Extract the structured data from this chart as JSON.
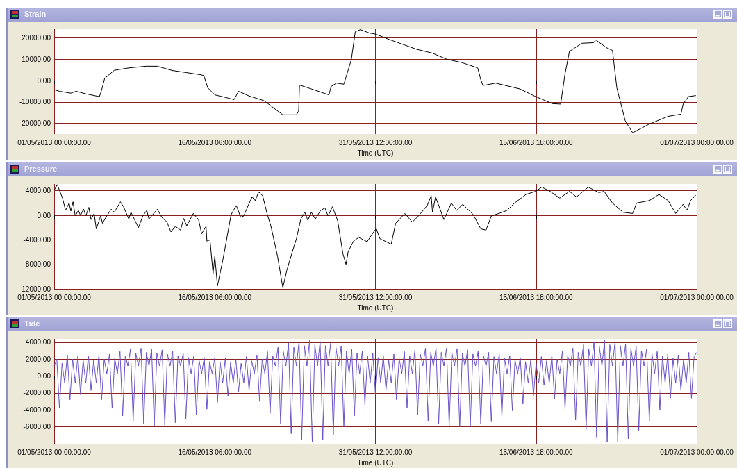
{
  "chart_data": [
    {
      "type": "line",
      "title": "Strain",
      "xlabel": "Time (UTC)",
      "grid": true,
      "xlim": [
        "2013-05-01T00:00",
        "2013-07-01T00:00"
      ],
      "xticks": [
        {
          "value": "2013-05-01T00:00",
          "label": "01/05/2013 00:00:00.00"
        },
        {
          "value": "2013-05-16T06:00",
          "label": "16/05/2013 06:00:00.00"
        },
        {
          "value": "2013-05-31T12:00",
          "label": "31/05/2013 12:00:00.00"
        },
        {
          "value": "2013-06-15T18:00",
          "label": "15/06/2013 18:00:00.00"
        },
        {
          "value": "2013-07-01T00:00",
          "label": "01/07/2013 00:00:00.00"
        }
      ],
      "ylim": [
        -25000,
        24000
      ],
      "yticks": [
        {
          "value": -20000,
          "label": "-20000.00"
        },
        {
          "value": -10000,
          "label": "-10000.00"
        },
        {
          "value": 0,
          "label": "0.00"
        },
        {
          "value": 10000,
          "label": "10000.00"
        },
        {
          "value": 20000,
          "label": "20000.00"
        }
      ],
      "x": [
        "2013-05-01T00:00",
        "2013-05-01T12:00",
        "2013-05-02T14:00",
        "2013-05-03T02:00",
        "2013-05-04T00:00",
        "2013-05-05T07:00",
        "2013-05-05T12:00",
        "2013-05-05T19:00",
        "2013-05-06T17:00",
        "2013-05-08T02:00",
        "2013-05-09T17:00",
        "2013-05-10T19:00",
        "2013-05-12T05:00",
        "2013-05-13T14:00",
        "2013-05-14T22:00",
        "2013-05-15T05:00",
        "2013-05-15T14:00",
        "2013-05-16T06:00",
        "2013-05-17T05:00",
        "2013-05-18T02:00",
        "2013-05-18T12:00",
        "2013-05-19T12:00",
        "2013-05-20T22:00",
        "2013-05-22T17:00",
        "2013-05-24T00:00",
        "2013-05-24T05:00",
        "2013-05-24T07:00",
        "2013-05-25T10:00",
        "2013-05-27T02:00",
        "2013-05-27T07:00",
        "2013-05-27T19:00",
        "2013-05-28T12:00",
        "2013-05-29T05:00",
        "2013-05-29T14:00",
        "2013-05-30T02:00",
        "2013-05-30T22:00",
        "2013-05-31T12:00",
        "2013-06-01T19:00",
        "2013-06-04T10:00",
        "2013-06-05T22:00",
        "2013-06-07T07:00",
        "2013-06-08T17:00",
        "2013-06-10T05:00",
        "2013-06-10T12:00",
        "2013-06-10T17:00",
        "2013-06-11T22:00",
        "2013-06-14T05:00",
        "2013-06-15T14:00",
        "2013-06-17T07:00",
        "2013-06-18T02:00",
        "2013-06-18T12:00",
        "2013-06-18T22:00",
        "2013-06-20T02:00",
        "2013-06-21T05:00",
        "2013-06-21T10:00",
        "2013-06-22T10:00",
        "2013-06-23T00:00",
        "2013-06-23T10:00",
        "2013-06-24T05:00",
        "2013-06-24T22:00",
        "2013-06-26T12:00",
        "2013-06-28T07:00",
        "2013-06-29T12:00",
        "2013-06-29T17:00",
        "2013-06-30T05:00",
        "2013-06-30T22:00"
      ],
      "series": [
        {
          "color": "#000000",
          "values": [
            -4300,
            -5000,
            -5900,
            -5000,
            -6200,
            -7500,
            -4500,
            1000,
            4800,
            5900,
            6700,
            6700,
            4700,
            3700,
            2700,
            2300,
            -3400,
            -6700,
            -7800,
            -8900,
            -5000,
            -7200,
            -9400,
            -16000,
            -16000,
            -14300,
            -2100,
            -3900,
            -6700,
            -2800,
            -1200,
            -1700,
            9700,
            22800,
            23800,
            22200,
            21700,
            19200,
            14600,
            12800,
            9900,
            8400,
            5900,
            400,
            -2300,
            -1200,
            -3900,
            -7200,
            -10800,
            -11000,
            3200,
            13600,
            17400,
            17700,
            19000,
            15400,
            14100,
            -3400,
            -18700,
            -24400,
            -20300,
            -16700,
            -15700,
            -11000,
            -7500,
            -7000
          ]
        }
      ]
    },
    {
      "type": "line",
      "title": "Pressure",
      "xlabel": "Time (UTC)",
      "grid": true,
      "xlim": [
        "2013-05-01T00:00",
        "2013-07-01T00:00"
      ],
      "xticks": [
        {
          "value": "2013-05-01T00:00",
          "label": "01/05/2013 00:00:00.00"
        },
        {
          "value": "2013-05-16T06:00",
          "label": "16/05/2013 06:00:00.00"
        },
        {
          "value": "2013-05-31T12:00",
          "label": "31/05/2013 12:00:00.00"
        },
        {
          "value": "2013-06-15T18:00",
          "label": "15/06/2013 18:00:00.00"
        },
        {
          "value": "2013-07-01T00:00",
          "label": "01/07/2013 00:00:00.00"
        }
      ],
      "ylim": [
        -12000,
        5100
      ],
      "yticks": [
        {
          "value": -12000,
          "label": "-12000.00"
        },
        {
          "value": -8000,
          "label": "-8000.00"
        },
        {
          "value": -4000,
          "label": "-4000.00"
        },
        {
          "value": 0,
          "label": "0.00"
        },
        {
          "value": 4000,
          "label": "4000.00"
        }
      ],
      "x": [
        "2013-05-01T00:00",
        "2013-05-01T07:00",
        "2013-05-01T19:00",
        "2013-05-02T02:00",
        "2013-05-02T10:00",
        "2013-05-02T14:00",
        "2013-05-02T19:00",
        "2013-05-03T00:00",
        "2013-05-03T07:00",
        "2013-05-03T12:00",
        "2013-05-03T19:00",
        "2013-05-04T00:00",
        "2013-05-04T07:00",
        "2013-05-04T12:00",
        "2013-05-04T19:00",
        "2013-05-05T00:00",
        "2013-05-05T10:00",
        "2013-05-05T14:00",
        "2013-05-05T22:00",
        "2013-05-06T10:00",
        "2013-05-06T17:00",
        "2013-05-07T07:00",
        "2013-05-07T14:00",
        "2013-05-08T02:00",
        "2013-05-08T07:00",
        "2013-05-09T00:00",
        "2013-05-09T10:00",
        "2013-05-09T19:00",
        "2013-05-10T00:00",
        "2013-05-10T19:00",
        "2013-05-11T05:00",
        "2013-05-11T17:00",
        "2013-05-12T02:00",
        "2013-05-12T12:00",
        "2013-05-13T00:00",
        "2013-05-13T07:00",
        "2013-05-13T14:00",
        "2013-05-14T05:00",
        "2013-05-14T17:00",
        "2013-05-15T00:00",
        "2013-05-15T10:00",
        "2013-05-15T12:00",
        "2013-05-15T19:00",
        "2013-05-16T02:00",
        "2013-05-16T06:00",
        "2013-05-16T12:00",
        "2013-05-17T00:00",
        "2013-05-17T07:00",
        "2013-05-17T19:00",
        "2013-05-18T07:00",
        "2013-05-18T17:00",
        "2013-05-19T00:00",
        "2013-05-19T10:00",
        "2013-05-19T19:00",
        "2013-05-20T02:00",
        "2013-05-20T10:00",
        "2013-05-20T19:00",
        "2013-05-21T05:00",
        "2013-05-21T14:00",
        "2013-05-22T05:00",
        "2013-05-22T17:00",
        "2013-05-23T02:00",
        "2013-05-23T14:00",
        "2013-05-24T00:00",
        "2013-05-24T10:00",
        "2013-05-24T19:00",
        "2013-05-25T02:00",
        "2013-05-25T10:00",
        "2013-05-25T19:00",
        "2013-05-26T07:00",
        "2013-05-26T17:00",
        "2013-05-27T00:00",
        "2013-05-27T10:00",
        "2013-05-27T22:00",
        "2013-05-28T10:00",
        "2013-05-28T17:00",
        "2013-05-28T22:00",
        "2013-05-29T10:00",
        "2013-05-29T22:00",
        "2013-05-30T17:00",
        "2013-05-31T10:00",
        "2013-05-31T14:00",
        "2013-05-31T22:00",
        "2013-06-02T00:00",
        "2013-06-02T10:00",
        "2013-06-03T07:00",
        "2013-06-04T00:00",
        "2013-06-04T14:00",
        "2013-06-05T10:00",
        "2013-06-05T19:00",
        "2013-06-05T22:00",
        "2013-06-06T05:00",
        "2013-06-07T00:00",
        "2013-06-07T17:00",
        "2013-06-08T05:00",
        "2013-06-08T19:00",
        "2013-06-09T19:00",
        "2013-06-10T12:00",
        "2013-06-11T00:00",
        "2013-06-11T12:00",
        "2013-06-12T05:00",
        "2013-06-13T00:00",
        "2013-06-13T17:00",
        "2013-06-14T19:00",
        "2013-06-15T17:00",
        "2013-06-16T07:00",
        "2013-06-17T02:00",
        "2013-06-18T00:00",
        "2013-06-18T22:00",
        "2013-06-19T14:00",
        "2013-06-20T17:00",
        "2013-06-21T17:00",
        "2013-06-22T05:00",
        "2013-06-23T00:00",
        "2013-06-24T00:00",
        "2013-06-24T22:00",
        "2013-06-25T07:00",
        "2013-06-26T12:00",
        "2013-06-27T10:00",
        "2013-06-28T07:00",
        "2013-06-29T00:00",
        "2013-06-29T17:00",
        "2013-06-30T02:00",
        "2013-06-30T10:00",
        "2013-06-30T22:00"
      ],
      "series": [
        {
          "color": "#000000",
          "values": [
            4100,
            5000,
            2800,
            800,
            2000,
            700,
            2200,
            -100,
            800,
            0,
            1000,
            -100,
            1300,
            -700,
            300,
            -2200,
            -100,
            -1300,
            -300,
            1000,
            500,
            2200,
            1400,
            -600,
            500,
            -2000,
            -100,
            800,
            -600,
            1000,
            -300,
            -1100,
            -2700,
            -1800,
            -2400,
            -500,
            -1700,
            300,
            -700,
            -3000,
            -1800,
            -4200,
            -4000,
            -9500,
            -6700,
            -11500,
            -7400,
            -4700,
            100,
            1600,
            -300,
            -100,
            1600,
            3000,
            2400,
            3800,
            3200,
            300,
            -1800,
            -6700,
            -11800,
            -9000,
            -6100,
            -3800,
            -600,
            500,
            -800,
            500,
            -600,
            800,
            1200,
            -100,
            1400,
            -900,
            -6300,
            -8000,
            -5900,
            -4200,
            -3600,
            -4300,
            -2500,
            -2200,
            -3800,
            -4700,
            -1300,
            300,
            -1100,
            -100,
            1600,
            3200,
            500,
            3000,
            -700,
            2000,
            800,
            1800,
            100,
            -2200,
            -2400,
            -100,
            300,
            800,
            2000,
            3400,
            3900,
            4600,
            3900,
            2800,
            3900,
            3000,
            4600,
            3700,
            3900,
            2000,
            500,
            300,
            2000,
            2400,
            3400,
            2400,
            300,
            1800,
            800,
            2400,
            3300
          ]
        }
      ]
    },
    {
      "type": "line",
      "title": "Tide",
      "xlabel": "Time (UTC)",
      "grid": true,
      "xlim": [
        "2013-05-01T00:00",
        "2013-07-01T00:00"
      ],
      "xticks": [
        {
          "value": "2013-05-01T00:00",
          "label": "01/05/2013 00:00:00.00"
        },
        {
          "value": "2013-05-16T06:00",
          "label": "16/05/2013 06:00:00.00"
        },
        {
          "value": "2013-05-31T12:00",
          "label": "31/05/2013 12:00:00.00"
        },
        {
          "value": "2013-06-15T18:00",
          "label": "15/06/2013 18:00:00.00"
        },
        {
          "value": "2013-07-01T00:00",
          "label": "01/07/2013 00:00:00.00"
        }
      ],
      "ylim": [
        -8000,
        4400
      ],
      "yticks": [
        {
          "value": -6000,
          "label": "-6000.00"
        },
        {
          "value": -4000,
          "label": "-4000.00"
        },
        {
          "value": -2000,
          "label": "-2000.00"
        },
        {
          "value": 0,
          "label": "0.00"
        },
        {
          "value": 2000,
          "label": "2000.00"
        },
        {
          "value": 4000,
          "label": "4000.00"
        }
      ],
      "x": [
        "2013-05-01T00:00",
        "2013-05-01T06:00",
        "2013-05-01T12:00",
        "2013-05-01T18:00",
        "2013-05-02T00:00",
        "2013-05-02T06:00",
        "2013-05-02T12:00",
        "2013-05-02T18:00",
        "2013-05-03T00:00",
        "2013-05-03T06:00",
        "2013-05-03T12:00",
        "2013-05-03T18:00",
        "2013-05-04T00:00",
        "2013-05-04T06:00",
        "2013-05-04T12:00",
        "2013-05-04T18:00",
        "2013-05-05T00:00",
        "2013-05-05T06:00",
        "2013-05-05T12:00",
        "2013-05-05T18:00",
        "2013-05-06T00:00",
        "2013-05-06T06:00",
        "2013-05-06T12:00",
        "2013-05-06T18:00",
        "2013-05-07T00:00",
        "2013-05-07T06:00",
        "2013-05-07T12:00",
        "2013-05-07T18:00",
        "2013-05-08T00:00",
        "2013-05-08T06:00",
        "2013-05-08T12:00",
        "2013-05-08T18:00",
        "2013-05-09T00:00",
        "2013-05-09T06:00",
        "2013-05-09T12:00",
        "2013-05-09T18:00",
        "2013-05-10T00:00",
        "2013-05-10T06:00",
        "2013-05-10T12:00",
        "2013-05-10T18:00",
        "2013-05-11T00:00",
        "2013-05-11T06:00",
        "2013-05-11T12:00",
        "2013-05-11T18:00",
        "2013-05-12T00:00",
        "2013-05-12T06:00",
        "2013-05-12T12:00",
        "2013-05-12T18:00",
        "2013-05-13T00:00",
        "2013-05-13T06:00",
        "2013-05-13T12:00",
        "2013-05-13T18:00",
        "2013-05-14T00:00",
        "2013-05-14T06:00",
        "2013-05-14T12:00",
        "2013-05-14T18:00",
        "2013-05-15T00:00",
        "2013-05-15T06:00",
        "2013-05-15T12:00",
        "2013-05-15T18:00",
        "2013-05-16T00:00",
        "2013-05-16T06:00",
        "2013-05-16T12:00",
        "2013-05-16T18:00",
        "2013-05-17T00:00",
        "2013-05-17T06:00",
        "2013-05-17T12:00",
        "2013-05-17T18:00",
        "2013-05-18T00:00",
        "2013-05-18T06:00",
        "2013-05-18T12:00",
        "2013-05-18T18:00",
        "2013-05-19T00:00",
        "2013-05-19T06:00",
        "2013-05-19T12:00",
        "2013-05-19T18:00",
        "2013-05-20T00:00",
        "2013-05-20T06:00",
        "2013-05-20T12:00",
        "2013-05-20T18:00",
        "2013-05-21T00:00",
        "2013-05-21T06:00",
        "2013-05-21T12:00",
        "2013-05-21T18:00",
        "2013-05-22T00:00",
        "2013-05-22T06:00",
        "2013-05-22T12:00",
        "2013-05-22T18:00",
        "2013-05-23T00:00",
        "2013-05-23T06:00",
        "2013-05-23T12:00",
        "2013-05-23T18:00",
        "2013-05-24T00:00",
        "2013-05-24T06:00",
        "2013-05-24T12:00",
        "2013-05-24T18:00",
        "2013-05-25T00:00",
        "2013-05-25T06:00",
        "2013-05-25T12:00",
        "2013-05-25T18:00",
        "2013-05-26T00:00",
        "2013-05-26T06:00",
        "2013-05-26T12:00",
        "2013-05-26T18:00",
        "2013-05-27T00:00",
        "2013-05-27T06:00",
        "2013-05-27T12:00",
        "2013-05-27T18:00",
        "2013-05-28T00:00",
        "2013-05-28T06:00",
        "2013-05-28T12:00",
        "2013-05-28T18:00",
        "2013-05-29T00:00",
        "2013-05-29T06:00",
        "2013-05-29T12:00",
        "2013-05-29T18:00",
        "2013-05-30T00:00",
        "2013-05-30T06:00",
        "2013-05-30T12:00",
        "2013-05-30T18:00",
        "2013-05-31T00:00",
        "2013-05-31T06:00",
        "2013-05-31T12:00",
        "2013-05-31T18:00",
        "2013-06-01T00:00",
        "2013-06-01T06:00",
        "2013-06-01T12:00",
        "2013-06-01T18:00",
        "2013-06-02T00:00",
        "2013-06-02T06:00",
        "2013-06-02T12:00",
        "2013-06-02T18:00",
        "2013-06-03T00:00",
        "2013-06-03T06:00",
        "2013-06-03T12:00",
        "2013-06-03T18:00",
        "2013-06-04T00:00",
        "2013-06-04T06:00",
        "2013-06-04T12:00",
        "2013-06-04T18:00",
        "2013-06-05T00:00",
        "2013-06-05T06:00",
        "2013-06-05T12:00",
        "2013-06-05T18:00",
        "2013-06-06T00:00",
        "2013-06-06T06:00",
        "2013-06-06T12:00",
        "2013-06-06T18:00",
        "2013-06-07T00:00",
        "2013-06-07T06:00",
        "2013-06-07T12:00",
        "2013-06-07T18:00",
        "2013-06-08T00:00",
        "2013-06-08T06:00",
        "2013-06-08T12:00",
        "2013-06-08T18:00",
        "2013-06-09T00:00",
        "2013-06-09T06:00",
        "2013-06-09T12:00",
        "2013-06-09T18:00",
        "2013-06-10T00:00",
        "2013-06-10T06:00",
        "2013-06-10T12:00",
        "2013-06-10T18:00",
        "2013-06-11T00:00",
        "2013-06-11T06:00",
        "2013-06-11T12:00",
        "2013-06-11T18:00",
        "2013-06-12T00:00",
        "2013-06-12T06:00",
        "2013-06-12T12:00",
        "2013-06-12T18:00",
        "2013-06-13T00:00",
        "2013-06-13T06:00",
        "2013-06-13T12:00",
        "2013-06-13T18:00",
        "2013-06-14T00:00",
        "2013-06-14T06:00",
        "2013-06-14T12:00",
        "2013-06-14T18:00",
        "2013-06-15T00:00",
        "2013-06-15T06:00",
        "2013-06-15T12:00",
        "2013-06-15T18:00",
        "2013-06-16T00:00",
        "2013-06-16T06:00",
        "2013-06-16T12:00",
        "2013-06-16T18:00",
        "2013-06-17T00:00",
        "2013-06-17T06:00",
        "2013-06-17T12:00",
        "2013-06-17T18:00",
        "2013-06-18T00:00",
        "2013-06-18T06:00",
        "2013-06-18T12:00",
        "2013-06-18T18:00",
        "2013-06-19T00:00",
        "2013-06-19T06:00",
        "2013-06-19T12:00",
        "2013-06-19T18:00",
        "2013-06-20T00:00",
        "2013-06-20T06:00",
        "2013-06-20T12:00",
        "2013-06-20T18:00",
        "2013-06-21T00:00",
        "2013-06-21T06:00",
        "2013-06-21T12:00",
        "2013-06-21T18:00",
        "2013-06-22T00:00",
        "2013-06-22T06:00",
        "2013-06-22T12:00",
        "2013-06-22T18:00",
        "2013-06-23T00:00",
        "2013-06-23T06:00",
        "2013-06-23T12:00",
        "2013-06-23T18:00",
        "2013-06-24T00:00",
        "2013-06-24T06:00",
        "2013-06-24T12:00",
        "2013-06-24T18:00",
        "2013-06-25T00:00",
        "2013-06-25T06:00",
        "2013-06-25T12:00",
        "2013-06-25T18:00",
        "2013-06-26T00:00",
        "2013-06-26T06:00",
        "2013-06-26T12:00",
        "2013-06-26T18:00",
        "2013-06-27T00:00",
        "2013-06-27T06:00",
        "2013-06-27T12:00",
        "2013-06-27T18:00",
        "2013-06-28T00:00",
        "2013-06-28T06:00",
        "2013-06-28T12:00",
        "2013-06-28T18:00",
        "2013-06-29T00:00",
        "2013-06-29T06:00",
        "2013-06-29T12:00",
        "2013-06-29T18:00",
        "2013-06-30T00:00",
        "2013-06-30T06:00",
        "2013-06-30T12:00",
        "2013-06-30T18:00",
        "2013-07-01T00:00"
      ],
      "series": [
        {
          "color": "#6a50c8",
          "values": [
            1200,
            2000,
            -3800,
            1500,
            -800,
            2500,
            -2800,
            2000,
            -800,
            2400,
            -2200,
            1900,
            -800,
            2400,
            -1700,
            1900,
            -800,
            2500,
            -2800,
            2000,
            300,
            2600,
            -3800,
            2100,
            300,
            2900,
            -4700,
            2400,
            1200,
            3200,
            -5300,
            2700,
            1200,
            3300,
            -5700,
            2800,
            1200,
            3200,
            -5900,
            2700,
            1200,
            3100,
            -5800,
            2600,
            1200,
            2900,
            -5500,
            2400,
            1200,
            2700,
            -5100,
            2200,
            300,
            2400,
            -4600,
            1900,
            300,
            2200,
            -3900,
            1700,
            300,
            2200,
            -3100,
            1700,
            -800,
            2100,
            -2400,
            1600,
            -800,
            2000,
            -1900,
            1500,
            -800,
            2300,
            -1700,
            1800,
            300,
            2500,
            -3000,
            2000,
            300,
            2900,
            -4400,
            2400,
            1200,
            3400,
            -5700,
            2900,
            1200,
            3900,
            -6800,
            3400,
            1200,
            4100,
            -7500,
            3600,
            1200,
            4200,
            -7800,
            3700,
            1200,
            4100,
            -7500,
            3600,
            1200,
            3900,
            -7000,
            3400,
            1200,
            3500,
            -6000,
            3000,
            300,
            3200,
            -4700,
            2700,
            300,
            2900,
            -3400,
            2400,
            -800,
            2700,
            -2200,
            2200,
            -800,
            2400,
            -1700,
            1900,
            -800,
            2600,
            -2800,
            2100,
            300,
            2900,
            -3800,
            2400,
            300,
            3100,
            -4600,
            2600,
            1200,
            3300,
            -5300,
            2800,
            1200,
            3300,
            -5700,
            2800,
            1200,
            3300,
            -5900,
            2800,
            1200,
            3200,
            -6000,
            2700,
            1200,
            3100,
            -6000,
            2600,
            1200,
            2900,
            -5700,
            2400,
            1200,
            2800,
            -5400,
            2300,
            300,
            2600,
            -4800,
            2100,
            300,
            2400,
            -4100,
            1900,
            300,
            2200,
            -3300,
            1700,
            -800,
            2000,
            -2300,
            1500,
            -800,
            2300,
            -1100,
            1800,
            -800,
            2500,
            -2700,
            2000,
            300,
            2900,
            -3900,
            2400,
            1200,
            3300,
            -5200,
            2800,
            1200,
            3700,
            -6300,
            3200,
            1200,
            4000,
            -7300,
            3500,
            1200,
            4200,
            -7800,
            3700,
            1200,
            4100,
            -7800,
            3600,
            1200,
            3800,
            -7400,
            3300,
            1200,
            3500,
            -6400,
            3000,
            1200,
            3200,
            -5300,
            2700,
            300,
            2900,
            -4000,
            2400,
            -800,
            2600,
            -2600,
            2100,
            -800,
            2500,
            -1700,
            2000,
            -800,
            2800,
            -2600,
            2300,
            2800
          ]
        }
      ]
    }
  ]
}
